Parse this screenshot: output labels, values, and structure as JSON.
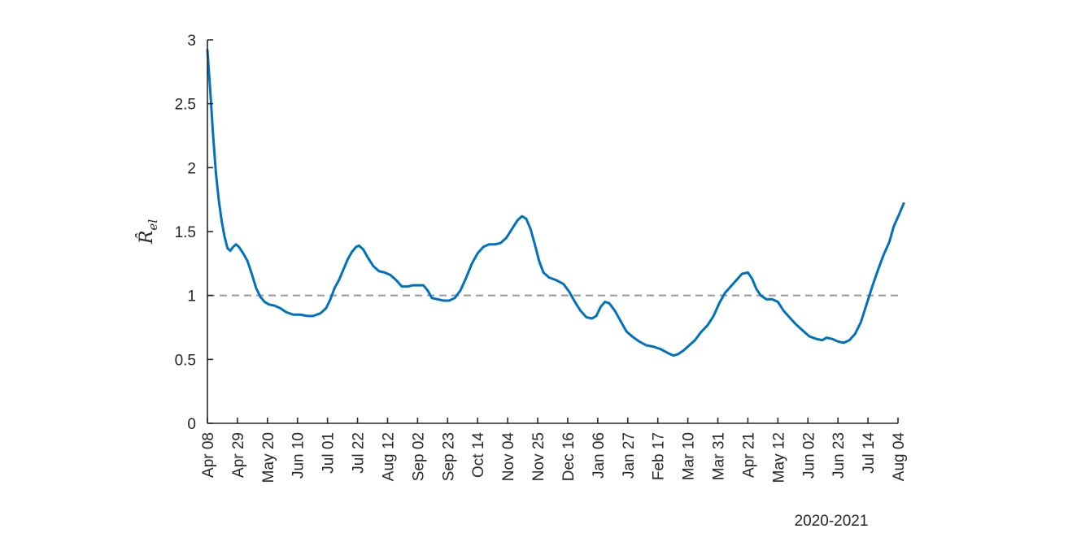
{
  "chart_data": {
    "type": "line",
    "title": "",
    "xlabel": "2020-2021",
    "ylabel": "R̂_el",
    "ylabel_main": "R̂",
    "ylabel_sub": "el",
    "ylim": [
      0,
      3
    ],
    "yticks": [
      0,
      0.5,
      1,
      1.5,
      2,
      2.5,
      3
    ],
    "ytick_labels": [
      "0",
      "0.5",
      "1",
      "1.5",
      "2",
      "2.5",
      "3"
    ],
    "xlim": [
      "2020-04-08",
      "2021-08-04"
    ],
    "xticks": [
      "2020-04-08",
      "2020-04-29",
      "2020-05-20",
      "2020-06-10",
      "2020-07-01",
      "2020-07-22",
      "2020-08-12",
      "2020-09-02",
      "2020-09-23",
      "2020-10-14",
      "2020-11-04",
      "2020-11-25",
      "2020-12-16",
      "2021-01-06",
      "2021-01-27",
      "2021-02-17",
      "2021-03-10",
      "2021-03-31",
      "2021-04-21",
      "2021-05-12",
      "2021-06-02",
      "2021-06-23",
      "2021-07-14",
      "2021-08-04"
    ],
    "xtick_labels": [
      "Apr 08",
      "Apr 29",
      "May 20",
      "Jun 10",
      "Jul 01",
      "Jul 22",
      "Aug 12",
      "Sep 02",
      "Sep 23",
      "Oct 14",
      "Nov 04",
      "Nov 25",
      "Dec 16",
      "Jan 06",
      "Jan 27",
      "Feb 17",
      "Mar 10",
      "Mar 31",
      "Apr 21",
      "May 12",
      "Jun 02",
      "Jun 23",
      "Jul 14",
      "Aug 04"
    ],
    "reference_line": {
      "y": 1,
      "style": "dashed",
      "color": "#999999"
    },
    "line_color": "#0072BD",
    "grid": false,
    "series": [
      {
        "points": [
          [
            "2020-04-08",
            2.92
          ],
          [
            "2020-04-10",
            2.6
          ],
          [
            "2020-04-12",
            2.25
          ],
          [
            "2020-04-14",
            1.95
          ],
          [
            "2020-04-16",
            1.74
          ],
          [
            "2020-04-18",
            1.58
          ],
          [
            "2020-04-20",
            1.46
          ],
          [
            "2020-04-22",
            1.37
          ],
          [
            "2020-04-24",
            1.35
          ],
          [
            "2020-04-26",
            1.38
          ],
          [
            "2020-04-28",
            1.4
          ],
          [
            "2020-04-30",
            1.38
          ],
          [
            "2020-05-03",
            1.33
          ],
          [
            "2020-05-06",
            1.27
          ],
          [
            "2020-05-09",
            1.17
          ],
          [
            "2020-05-12",
            1.06
          ],
          [
            "2020-05-15",
            0.99
          ],
          [
            "2020-05-18",
            0.95
          ],
          [
            "2020-05-21",
            0.93
          ],
          [
            "2020-05-25",
            0.92
          ],
          [
            "2020-05-29",
            0.9
          ],
          [
            "2020-06-02",
            0.87
          ],
          [
            "2020-06-07",
            0.85
          ],
          [
            "2020-06-12",
            0.85
          ],
          [
            "2020-06-17",
            0.84
          ],
          [
            "2020-06-21",
            0.84
          ],
          [
            "2020-06-26",
            0.86
          ],
          [
            "2020-06-30",
            0.9
          ],
          [
            "2020-07-03",
            0.97
          ],
          [
            "2020-07-06",
            1.06
          ],
          [
            "2020-07-09",
            1.12
          ],
          [
            "2020-07-12",
            1.2
          ],
          [
            "2020-07-15",
            1.28
          ],
          [
            "2020-07-18",
            1.34
          ],
          [
            "2020-07-21",
            1.38
          ],
          [
            "2020-07-23",
            1.39
          ],
          [
            "2020-07-26",
            1.36
          ],
          [
            "2020-07-29",
            1.3
          ],
          [
            "2020-08-02",
            1.23
          ],
          [
            "2020-08-06",
            1.19
          ],
          [
            "2020-08-10",
            1.18
          ],
          [
            "2020-08-14",
            1.16
          ],
          [
            "2020-08-18",
            1.12
          ],
          [
            "2020-08-22",
            1.07
          ],
          [
            "2020-08-26",
            1.07
          ],
          [
            "2020-08-30",
            1.08
          ],
          [
            "2020-09-03",
            1.08
          ],
          [
            "2020-09-06",
            1.08
          ],
          [
            "2020-09-09",
            1.04
          ],
          [
            "2020-09-12",
            0.98
          ],
          [
            "2020-09-16",
            0.97
          ],
          [
            "2020-09-20",
            0.96
          ],
          [
            "2020-09-24",
            0.96
          ],
          [
            "2020-09-28",
            0.98
          ],
          [
            "2020-10-02",
            1.04
          ],
          [
            "2020-10-06",
            1.14
          ],
          [
            "2020-10-10",
            1.25
          ],
          [
            "2020-10-14",
            1.33
          ],
          [
            "2020-10-18",
            1.38
          ],
          [
            "2020-10-22",
            1.4
          ],
          [
            "2020-10-26",
            1.4
          ],
          [
            "2020-10-30",
            1.41
          ],
          [
            "2020-11-03",
            1.45
          ],
          [
            "2020-11-07",
            1.52
          ],
          [
            "2020-11-11",
            1.59
          ],
          [
            "2020-11-14",
            1.62
          ],
          [
            "2020-11-17",
            1.6
          ],
          [
            "2020-11-20",
            1.52
          ],
          [
            "2020-11-23",
            1.4
          ],
          [
            "2020-11-26",
            1.27
          ],
          [
            "2020-11-29",
            1.18
          ],
          [
            "2020-12-03",
            1.14
          ],
          [
            "2020-12-08",
            1.12
          ],
          [
            "2020-12-13",
            1.09
          ],
          [
            "2020-12-17",
            1.03
          ],
          [
            "2020-12-21",
            0.95
          ],
          [
            "2020-12-25",
            0.88
          ],
          [
            "2020-12-29",
            0.83
          ],
          [
            "2021-01-02",
            0.82
          ],
          [
            "2021-01-05",
            0.84
          ],
          [
            "2021-01-08",
            0.91
          ],
          [
            "2021-01-11",
            0.95
          ],
          [
            "2021-01-14",
            0.94
          ],
          [
            "2021-01-18",
            0.88
          ],
          [
            "2021-01-22",
            0.8
          ],
          [
            "2021-01-26",
            0.72
          ],
          [
            "2021-01-30",
            0.68
          ],
          [
            "2021-02-04",
            0.64
          ],
          [
            "2021-02-09",
            0.61
          ],
          [
            "2021-02-14",
            0.6
          ],
          [
            "2021-02-19",
            0.58
          ],
          [
            "2021-02-24",
            0.55
          ],
          [
            "2021-02-28",
            0.53
          ],
          [
            "2021-03-03",
            0.54
          ],
          [
            "2021-03-07",
            0.57
          ],
          [
            "2021-03-11",
            0.61
          ],
          [
            "2021-03-15",
            0.65
          ],
          [
            "2021-03-19",
            0.71
          ],
          [
            "2021-03-24",
            0.77
          ],
          [
            "2021-03-28",
            0.84
          ],
          [
            "2021-04-01",
            0.94
          ],
          [
            "2021-04-05",
            1.02
          ],
          [
            "2021-04-09",
            1.07
          ],
          [
            "2021-04-13",
            1.12
          ],
          [
            "2021-04-17",
            1.17
          ],
          [
            "2021-04-21",
            1.18
          ],
          [
            "2021-04-24",
            1.13
          ],
          [
            "2021-04-27",
            1.05
          ],
          [
            "2021-04-30",
            1.0
          ],
          [
            "2021-05-04",
            0.97
          ],
          [
            "2021-05-08",
            0.97
          ],
          [
            "2021-05-12",
            0.95
          ],
          [
            "2021-05-16",
            0.88
          ],
          [
            "2021-05-20",
            0.83
          ],
          [
            "2021-05-25",
            0.77
          ],
          [
            "2021-05-30",
            0.72
          ],
          [
            "2021-06-03",
            0.68
          ],
          [
            "2021-06-08",
            0.66
          ],
          [
            "2021-06-12",
            0.65
          ],
          [
            "2021-06-15",
            0.67
          ],
          [
            "2021-06-19",
            0.66
          ],
          [
            "2021-06-23",
            0.64
          ],
          [
            "2021-06-27",
            0.63
          ],
          [
            "2021-07-01",
            0.65
          ],
          [
            "2021-07-05",
            0.7
          ],
          [
            "2021-07-09",
            0.79
          ],
          [
            "2021-07-13",
            0.93
          ],
          [
            "2021-07-17",
            1.07
          ],
          [
            "2021-07-21",
            1.2
          ],
          [
            "2021-07-25",
            1.32
          ],
          [
            "2021-07-29",
            1.42
          ],
          [
            "2021-08-01",
            1.54
          ],
          [
            "2021-08-05",
            1.64
          ],
          [
            "2021-08-08",
            1.72
          ]
        ]
      }
    ]
  }
}
